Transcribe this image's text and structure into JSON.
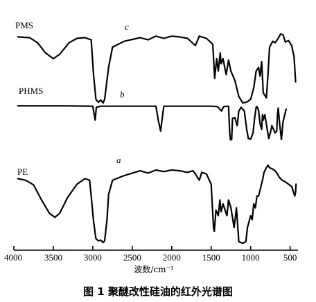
{
  "chart_data": {
    "type": "line",
    "xlabel": "波数/cm⁻¹",
    "xlim": [
      4000,
      400
    ],
    "x_ticks": [
      4000,
      3500,
      3000,
      2500,
      2000,
      1500,
      1000,
      500
    ],
    "caption": "图 1    聚醚改性硅油的红外光谱图",
    "series": [
      {
        "name": "PMS",
        "letter": "c",
        "points": [
          [
            3950,
            0.92
          ],
          [
            3800,
            0.91
          ],
          [
            3700,
            0.84
          ],
          [
            3600,
            0.7
          ],
          [
            3500,
            0.62
          ],
          [
            3420,
            0.68
          ],
          [
            3300,
            0.84
          ],
          [
            3200,
            0.9
          ],
          [
            3100,
            0.91
          ],
          [
            3020,
            0.88
          ],
          [
            2990,
            0.4
          ],
          [
            2960,
            0.06
          ],
          [
            2930,
            0.02
          ],
          [
            2900,
            0.05
          ],
          [
            2870,
            0.01
          ],
          [
            2850,
            0.06
          ],
          [
            2800,
            0.5
          ],
          [
            2750,
            0.78
          ],
          [
            2600,
            0.86
          ],
          [
            2400,
            0.91
          ],
          [
            2300,
            0.88
          ],
          [
            2200,
            0.93
          ],
          [
            2100,
            0.9
          ],
          [
            2000,
            0.93
          ],
          [
            1900,
            0.92
          ],
          [
            1800,
            0.9
          ],
          [
            1700,
            0.8
          ],
          [
            1650,
            0.93
          ],
          [
            1560,
            0.9
          ],
          [
            1480,
            0.82
          ],
          [
            1455,
            0.35
          ],
          [
            1430,
            0.62
          ],
          [
            1410,
            0.45
          ],
          [
            1385,
            0.7
          ],
          [
            1375,
            0.55
          ],
          [
            1350,
            0.62
          ],
          [
            1310,
            0.4
          ],
          [
            1280,
            0.6
          ],
          [
            1250,
            0.45
          ],
          [
            1200,
            0.32
          ],
          [
            1150,
            0.1
          ],
          [
            1100,
            0.01
          ],
          [
            1050,
            0.02
          ],
          [
            1000,
            0.06
          ],
          [
            960,
            0.22
          ],
          [
            930,
            0.45
          ],
          [
            900,
            0.5
          ],
          [
            880,
            0.38
          ],
          [
            860,
            0.58
          ],
          [
            840,
            0.15
          ],
          [
            800,
            0.08
          ],
          [
            780,
            0.4
          ],
          [
            760,
            0.78
          ],
          [
            720,
            0.86
          ],
          [
            690,
            0.84
          ],
          [
            650,
            0.9
          ],
          [
            620,
            0.96
          ],
          [
            590,
            0.95
          ],
          [
            560,
            0.85
          ],
          [
            520,
            0.87
          ],
          [
            480,
            0.8
          ],
          [
            450,
            0.65
          ],
          [
            430,
            0.3
          ]
        ]
      },
      {
        "name": "PHMS",
        "letter": "b",
        "points": [
          [
            3950,
            0.94
          ],
          [
            3400,
            0.94
          ],
          [
            3000,
            0.93
          ],
          [
            2970,
            0.55
          ],
          [
            2955,
            0.9
          ],
          [
            2900,
            0.93
          ],
          [
            2200,
            0.93
          ],
          [
            2170,
            0.55
          ],
          [
            2140,
            0.25
          ],
          [
            2120,
            0.6
          ],
          [
            2100,
            0.93
          ],
          [
            1500,
            0.93
          ],
          [
            1420,
            0.92
          ],
          [
            1370,
            0.8
          ],
          [
            1340,
            0.92
          ],
          [
            1280,
            0.93
          ],
          [
            1265,
            0.2
          ],
          [
            1255,
            0.01
          ],
          [
            1240,
            0.02
          ],
          [
            1230,
            0.6
          ],
          [
            1200,
            0.62
          ],
          [
            1170,
            0.4
          ],
          [
            1150,
            0.8
          ],
          [
            1120,
            0.9
          ],
          [
            1080,
            0.8
          ],
          [
            1050,
            0.3
          ],
          [
            1030,
            0.05
          ],
          [
            1000,
            0.03
          ],
          [
            970,
            0.2
          ],
          [
            950,
            0.6
          ],
          [
            930,
            0.9
          ],
          [
            920,
            0.92
          ],
          [
            900,
            0.82
          ],
          [
            880,
            0.45
          ],
          [
            860,
            0.3
          ],
          [
            850,
            0.7
          ],
          [
            840,
            0.55
          ],
          [
            820,
            0.7
          ],
          [
            790,
            0.3
          ],
          [
            770,
            0.05
          ],
          [
            750,
            0.2
          ],
          [
            730,
            0.4
          ],
          [
            710,
            0.3
          ],
          [
            690,
            0.2
          ],
          [
            670,
            0.25
          ],
          [
            660,
            0.7
          ],
          [
            650,
            0.88
          ],
          [
            630,
            0.4
          ],
          [
            610,
            0.02
          ],
          [
            590,
            0.5
          ],
          [
            550,
            0.85
          ]
        ]
      },
      {
        "name": "PE",
        "letter": "a",
        "points": [
          [
            3950,
            0.82
          ],
          [
            3850,
            0.8
          ],
          [
            3750,
            0.74
          ],
          [
            3650,
            0.55
          ],
          [
            3550,
            0.38
          ],
          [
            3480,
            0.33
          ],
          [
            3420,
            0.38
          ],
          [
            3320,
            0.58
          ],
          [
            3200,
            0.75
          ],
          [
            3100,
            0.82
          ],
          [
            3040,
            0.8
          ],
          [
            3020,
            0.6
          ],
          [
            2990,
            0.28
          ],
          [
            2960,
            0.06
          ],
          [
            2930,
            0.03
          ],
          [
            2900,
            0.04
          ],
          [
            2870,
            0.01
          ],
          [
            2850,
            0.03
          ],
          [
            2820,
            0.3
          ],
          [
            2800,
            0.62
          ],
          [
            2750,
            0.8
          ],
          [
            2600,
            0.86
          ],
          [
            2400,
            0.92
          ],
          [
            2300,
            0.89
          ],
          [
            2200,
            0.93
          ],
          [
            2100,
            0.91
          ],
          [
            2000,
            0.93
          ],
          [
            1900,
            0.92
          ],
          [
            1800,
            0.9
          ],
          [
            1730,
            0.92
          ],
          [
            1700,
            0.88
          ],
          [
            1650,
            0.8
          ],
          [
            1620,
            0.9
          ],
          [
            1560,
            0.88
          ],
          [
            1500,
            0.75
          ],
          [
            1470,
            0.2
          ],
          [
            1460,
            0.15
          ],
          [
            1440,
            0.42
          ],
          [
            1410,
            0.35
          ],
          [
            1390,
            0.55
          ],
          [
            1375,
            0.4
          ],
          [
            1350,
            0.5
          ],
          [
            1300,
            0.35
          ],
          [
            1280,
            0.55
          ],
          [
            1250,
            0.45
          ],
          [
            1210,
            0.2
          ],
          [
            1180,
            0.45
          ],
          [
            1150,
            0.02
          ],
          [
            1100,
            0.0
          ],
          [
            1060,
            0.02
          ],
          [
            1040,
            0.2
          ],
          [
            1000,
            0.35
          ],
          [
            980,
            0.3
          ],
          [
            960,
            0.5
          ],
          [
            940,
            0.45
          ],
          [
            920,
            0.6
          ],
          [
            900,
            0.6
          ],
          [
            870,
            0.72
          ],
          [
            850,
            0.8
          ],
          [
            830,
            0.9
          ],
          [
            800,
            0.96
          ],
          [
            780,
            0.99
          ],
          [
            760,
            0.96
          ],
          [
            720,
            0.94
          ],
          [
            690,
            0.92
          ],
          [
            660,
            0.88
          ],
          [
            640,
            0.84
          ],
          [
            600,
            0.8
          ],
          [
            560,
            0.78
          ],
          [
            520,
            0.75
          ],
          [
            480,
            0.72
          ],
          [
            440,
            0.6
          ],
          [
            430,
            0.65
          ],
          [
            425,
            0.75
          ]
        ]
      }
    ]
  }
}
